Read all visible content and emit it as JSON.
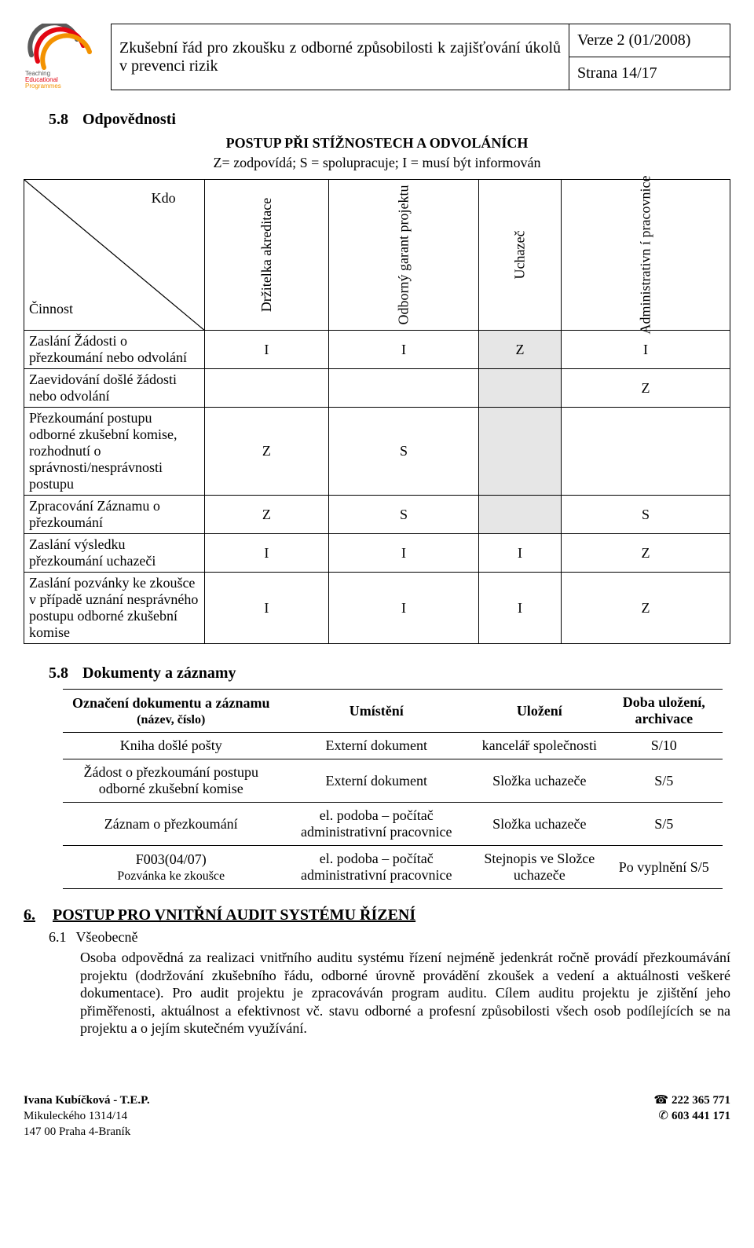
{
  "header": {
    "title": "Zkušební řád pro zkoušku z odborné způsobilosti k zajišťování úkolů v prevenci rizik",
    "version": "Verze 2 (01/2008)",
    "page": "Strana 14/17",
    "logo_text_top": "Teaching",
    "logo_text_mid": "Educational",
    "logo_text_bot": "Programmes",
    "logo_colors": {
      "arc1": "#5a5a5a",
      "arc2": "#e30613",
      "arc3": "#f39200"
    }
  },
  "sec58": {
    "num": "5.8",
    "title": "Odpovědnosti",
    "subtitle": "POSTUP PŘI STÍŽNOSTECH A ODVOLÁNÍCH",
    "legend": "Z= zodpovídá; S = spolupracuje; I = musí být informován",
    "kdo": "Kdo",
    "cinnost": "Činnost",
    "columns": {
      "c1": "Držitelka akreditace",
      "c2": "Odborný garant projektu",
      "c3": "Uchazeč",
      "c4": "Administrativn í pracovnice"
    },
    "rows": [
      {
        "activity": "Zaslání Žádosti o přezkoumání nebo odvolání",
        "v": [
          "I",
          "I",
          "Z",
          "I"
        ],
        "shade": [
          0,
          0,
          1,
          0
        ]
      },
      {
        "activity": "Zaevidování došlé žádosti nebo odvolání",
        "v": [
          "",
          "",
          "",
          "Z"
        ],
        "shade": [
          0,
          0,
          1,
          0
        ]
      },
      {
        "activity": "Přezkoumání postupu odborné zkušební komise, rozhodnutí o správnosti/nesprávnosti postupu",
        "v": [
          "Z",
          "S",
          "",
          ""
        ],
        "shade": [
          0,
          0,
          1,
          0
        ]
      },
      {
        "activity": "Zpracování Záznamu o přezkoumání",
        "v": [
          "Z",
          "S",
          "",
          "S"
        ],
        "shade": [
          0,
          0,
          1,
          0
        ]
      },
      {
        "activity": "Zaslání výsledku přezkoumání uchazeči",
        "v": [
          "I",
          "I",
          "I",
          "Z"
        ],
        "shade": [
          0,
          0,
          0,
          0
        ]
      },
      {
        "activity": "Zaslání pozvánky ke zkoušce v případě uznání nesprávného postupu odborné zkušební komise",
        "v": [
          "I",
          "I",
          "I",
          "Z"
        ],
        "shade": [
          0,
          0,
          0,
          0
        ]
      }
    ]
  },
  "sec58b": {
    "num": "5.8",
    "title": "Dokumenty a záznamy",
    "head": {
      "c1a": "Označení dokumentu a záznamu",
      "c1b": "(název, číslo)",
      "c2": "Umístění",
      "c3": "Uložení",
      "c4": "Doba uložení, archivace"
    },
    "rows": [
      {
        "name": "Kniha došlé pošty",
        "place": "Externí dokument",
        "store": "kancelář společnosti",
        "ret": "S/10"
      },
      {
        "name": "Žádost o přezkoumání postupu odborné zkušební komise",
        "place": "Externí dokument",
        "store": "Složka uchazeče",
        "ret": "S/5"
      },
      {
        "name": "Záznam o přezkoumání",
        "place": "el. podoba – počítač administrativní pracovnice",
        "store": "Složka uchazeče",
        "ret": "S/5"
      },
      {
        "name": "F003(04/07)",
        "name2": "Pozvánka ke zkoušce",
        "place": "el. podoba – počítač administrativní pracovnice",
        "store": "Stejnopis ve Složce uchazeče",
        "ret": "Po vyplnění S/5"
      }
    ]
  },
  "sec6": {
    "num": "6.",
    "title": "POSTUP PRO VNITŘNÍ AUDIT SYSTÉMU ŘÍZENÍ",
    "sub_num": "6.1",
    "sub_title": "Všeobecně",
    "para": "Osoba odpovědná za realizaci vnitřního auditu systému řízení nejméně jedenkrát ročně provádí přezkoumávání projektu (dodržování zkušebního řádu, odborné úrovně provádění zkoušek a vedení a aktuálnosti veškeré dokumentace). Pro audit projektu je zpracováván program auditu. Cílem auditu projektu je zjištění jeho přiměřenosti, aktuálnost a efektivnost vč. stavu odborné a profesní způsobilosti všech osob podílejících se na projektu a o jejím skutečném využívání."
  },
  "footer": {
    "left1": "Ivana Kubíčková - T.E.P.",
    "left2": "Mikuleckého 1314/14",
    "left3": "147 00 Praha 4-Braník",
    "right1": "222 365 771",
    "right2": "603 441 171"
  }
}
